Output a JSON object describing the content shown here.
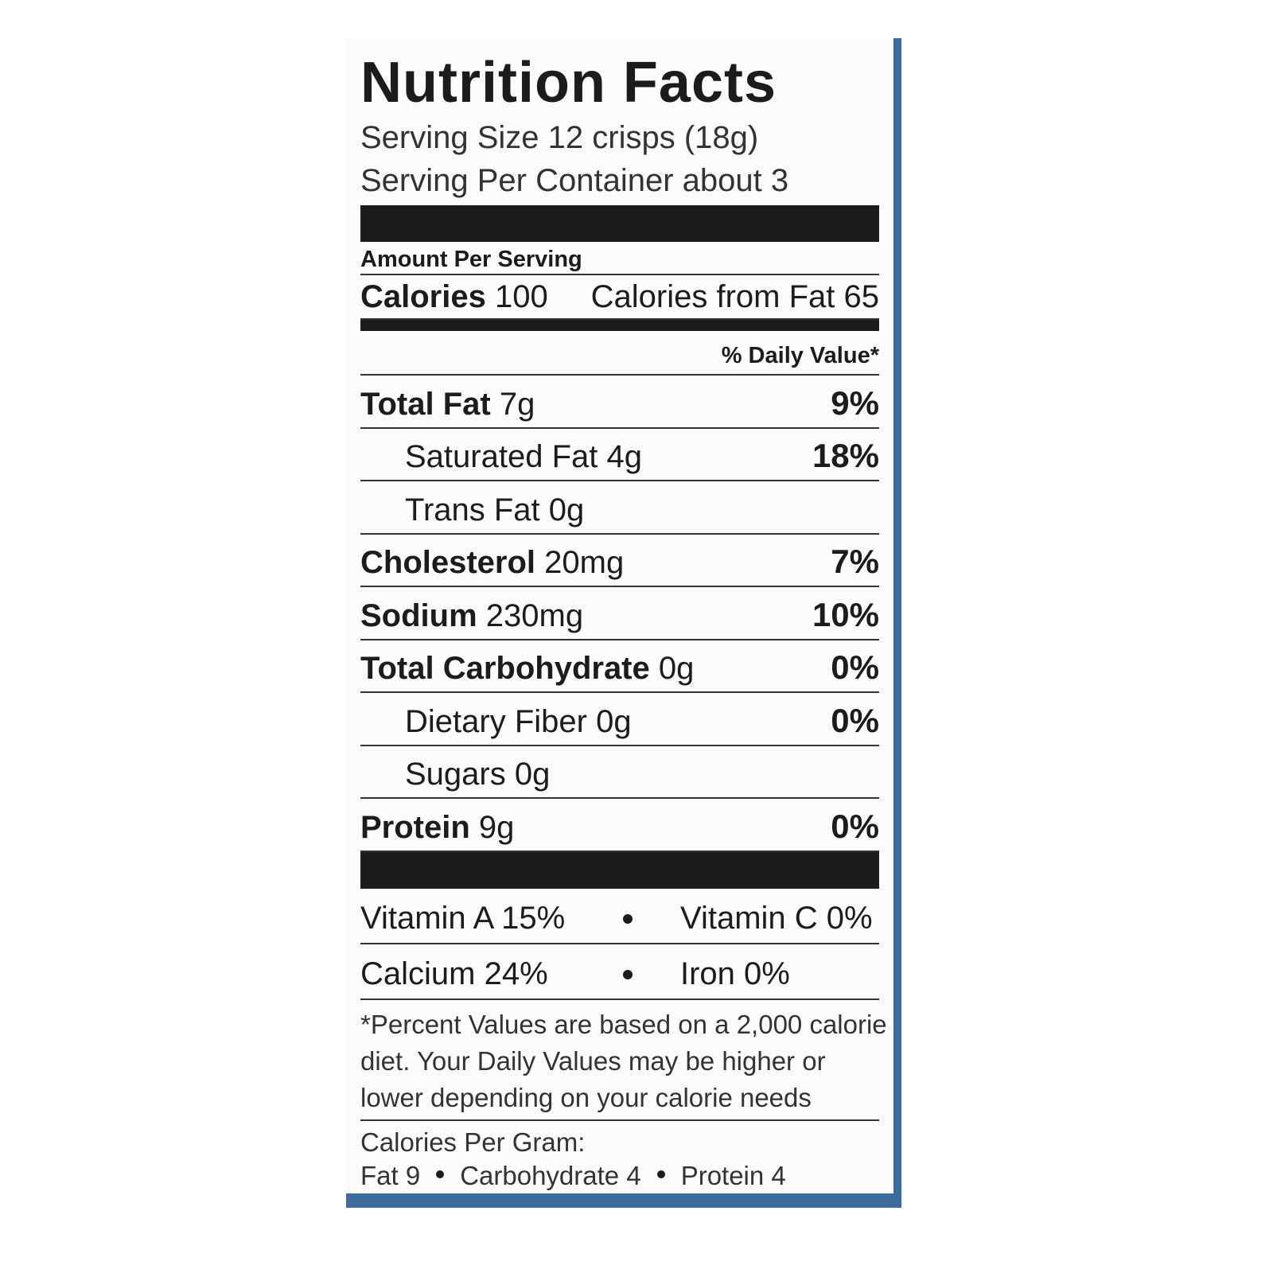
{
  "header": {
    "title": "Nutrition Facts",
    "serving_size": "Serving Size 12 crisps (18g)",
    "servings_per_container": "Serving Per Container about 3"
  },
  "amount_per_serving": "Amount Per Serving",
  "calories": {
    "label": "Calories",
    "value": "100",
    "from_fat": "Calories from Fat 65"
  },
  "daily_value_header": "% Daily Value*",
  "nutrients": [
    {
      "name": "Total Fat",
      "amount": "7g",
      "dv": "9%",
      "sub": [
        {
          "name": "Saturated Fat",
          "amount": "4g",
          "dv": "18%"
        },
        {
          "name": "Trans Fat",
          "amount": "0g"
        }
      ]
    },
    {
      "name": "Cholesterol",
      "amount": "20mg",
      "dv": "7%"
    },
    {
      "name": "Sodium",
      "amount": "230mg",
      "dv": "10%"
    },
    {
      "name": "Total Carbohydrate",
      "amount": "0g",
      "dv": "0%",
      "sub": [
        {
          "name": "Dietary Fiber",
          "amount": "0g",
          "dv": "0%"
        },
        {
          "name": "Sugars",
          "amount": "0g"
        }
      ]
    },
    {
      "name": "Protein",
      "amount": "9g",
      "dv": "0%"
    }
  ],
  "vitamins": [
    [
      "Vitamin A 15%",
      "Vitamin C 0%"
    ],
    [
      "Calcium 24%",
      "Iron 0%"
    ]
  ],
  "footnote": [
    "*Percent Values are based on a 2,000 calorie",
    "diet. Your Daily Values may be higher or",
    "lower depending on your calorie needs"
  ],
  "calories_per_gram": {
    "label": "Calories Per Gram:",
    "items": [
      "Fat 9",
      "Carbohydrate 4",
      "Protein 4"
    ]
  }
}
